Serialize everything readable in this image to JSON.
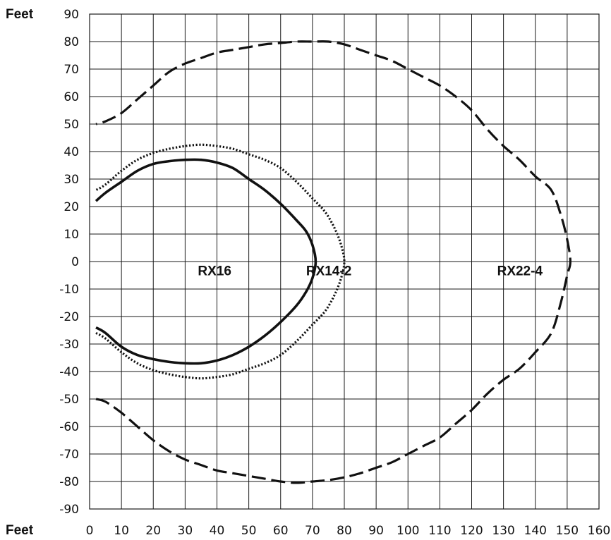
{
  "chart_data": {
    "type": "line",
    "xlabel": "Feet",
    "ylabel": "Feet",
    "xlim": [
      0,
      160
    ],
    "ylim": [
      -90,
      90
    ],
    "x_ticks": [
      0,
      10,
      20,
      30,
      40,
      50,
      60,
      70,
      80,
      90,
      100,
      110,
      120,
      130,
      140,
      150,
      160
    ],
    "y_ticks": [
      90,
      80,
      70,
      60,
      50,
      40,
      30,
      20,
      10,
      0,
      -10,
      -20,
      -30,
      -40,
      -50,
      -60,
      -70,
      -80,
      -90
    ],
    "grid": true,
    "colors": {
      "lines": "#111111",
      "grid": "#1a1a1a",
      "background": "#ffffff"
    },
    "series": [
      {
        "name": "RX16",
        "style": "solid",
        "label_at": [
          34,
          -5
        ],
        "points": [
          [
            2,
            -24
          ],
          [
            5,
            -26
          ],
          [
            10,
            -31
          ],
          [
            15,
            -34
          ],
          [
            20,
            -35.5
          ],
          [
            25,
            -36.5
          ],
          [
            30,
            -37
          ],
          [
            35,
            -37
          ],
          [
            40,
            -36
          ],
          [
            45,
            -34
          ],
          [
            50,
            -31
          ],
          [
            55,
            -27
          ],
          [
            60,
            -22
          ],
          [
            65,
            -16
          ],
          [
            68,
            -11
          ],
          [
            70,
            -6
          ],
          [
            71,
            0
          ],
          [
            70,
            6
          ],
          [
            68,
            11
          ],
          [
            65,
            15
          ],
          [
            60,
            21
          ],
          [
            55,
            26
          ],
          [
            50,
            30
          ],
          [
            45,
            34
          ],
          [
            40,
            36
          ],
          [
            35,
            37
          ],
          [
            30,
            37
          ],
          [
            25,
            36.5
          ],
          [
            20,
            35.5
          ],
          [
            15,
            33
          ],
          [
            10,
            29
          ],
          [
            5,
            25
          ],
          [
            2,
            22
          ]
        ]
      },
      {
        "name": "RX14-2",
        "style": "dotted",
        "label_at": [
          68,
          -5
        ],
        "points": [
          [
            2,
            -26
          ],
          [
            5,
            -28
          ],
          [
            10,
            -33
          ],
          [
            15,
            -37
          ],
          [
            20,
            -39.5
          ],
          [
            25,
            -41
          ],
          [
            30,
            -42
          ],
          [
            35,
            -42.5
          ],
          [
            40,
            -42
          ],
          [
            45,
            -41
          ],
          [
            50,
            -39
          ],
          [
            55,
            -37
          ],
          [
            60,
            -34
          ],
          [
            65,
            -29
          ],
          [
            70,
            -23
          ],
          [
            74,
            -18
          ],
          [
            77,
            -12
          ],
          [
            79,
            -6
          ],
          [
            80,
            0
          ],
          [
            79,
            6
          ],
          [
            77,
            12
          ],
          [
            74,
            18
          ],
          [
            70,
            23
          ],
          [
            65,
            29
          ],
          [
            60,
            34
          ],
          [
            55,
            37
          ],
          [
            50,
            39
          ],
          [
            45,
            41
          ],
          [
            40,
            42
          ],
          [
            35,
            42.5
          ],
          [
            30,
            42
          ],
          [
            25,
            41
          ],
          [
            20,
            39.5
          ],
          [
            15,
            37
          ],
          [
            10,
            33
          ],
          [
            5,
            28
          ],
          [
            2,
            26
          ]
        ]
      },
      {
        "name": "RX22-4",
        "style": "dashed",
        "label_at": [
          128,
          -5
        ],
        "points": [
          [
            2,
            -50
          ],
          [
            5,
            -51
          ],
          [
            10,
            -55
          ],
          [
            15,
            -60
          ],
          [
            20,
            -65
          ],
          [
            25,
            -69
          ],
          [
            30,
            -72
          ],
          [
            35,
            -74
          ],
          [
            40,
            -76
          ],
          [
            45,
            -77
          ],
          [
            50,
            -78
          ],
          [
            55,
            -79
          ],
          [
            60,
            -80
          ],
          [
            65,
            -80.5
          ],
          [
            70,
            -80
          ],
          [
            75,
            -79.5
          ],
          [
            80,
            -78.5
          ],
          [
            85,
            -77
          ],
          [
            90,
            -75
          ],
          [
            95,
            -73
          ],
          [
            100,
            -70
          ],
          [
            105,
            -67
          ],
          [
            110,
            -64
          ],
          [
            115,
            -59
          ],
          [
            120,
            -54
          ],
          [
            125,
            -48
          ],
          [
            130,
            -43
          ],
          [
            135,
            -39
          ],
          [
            140,
            -33
          ],
          [
            145,
            -26
          ],
          [
            148,
            -15
          ],
          [
            150,
            -5
          ],
          [
            151,
            0
          ],
          [
            150,
            8
          ],
          [
            148,
            17
          ],
          [
            145,
            26
          ],
          [
            140,
            31
          ],
          [
            135,
            37
          ],
          [
            130,
            42
          ],
          [
            125,
            48
          ],
          [
            120,
            55
          ],
          [
            115,
            60
          ],
          [
            110,
            64
          ],
          [
            105,
            67
          ],
          [
            100,
            70
          ],
          [
            95,
            73
          ],
          [
            90,
            75
          ],
          [
            85,
            77
          ],
          [
            80,
            79
          ],
          [
            75,
            80
          ],
          [
            70,
            80
          ],
          [
            65,
            80
          ],
          [
            60,
            79.5
          ],
          [
            55,
            79
          ],
          [
            50,
            78
          ],
          [
            45,
            77
          ],
          [
            40,
            76
          ],
          [
            35,
            74
          ],
          [
            30,
            72
          ],
          [
            25,
            69
          ],
          [
            20,
            64
          ],
          [
            15,
            59
          ],
          [
            10,
            54
          ],
          [
            5,
            51
          ],
          [
            2,
            50
          ]
        ]
      }
    ]
  }
}
